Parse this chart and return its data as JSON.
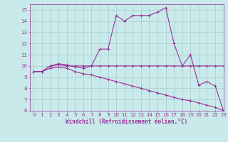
{
  "xlabel": "Windchill (Refroidissement éolien,°C)",
  "xlim": [
    -0.5,
    23
  ],
  "ylim": [
    6,
    15.5
  ],
  "xticks": [
    0,
    1,
    2,
    3,
    4,
    5,
    6,
    7,
    8,
    9,
    10,
    11,
    12,
    13,
    14,
    15,
    16,
    17,
    18,
    19,
    20,
    21,
    22,
    23
  ],
  "yticks": [
    6,
    7,
    8,
    9,
    10,
    11,
    12,
    13,
    14,
    15
  ],
  "bg_color": "#c8eaea",
  "line_color": "#993399",
  "grid_color": "#aacccc",
  "line1_x": [
    0,
    1,
    2,
    3,
    4,
    5,
    6,
    7,
    8,
    9,
    10,
    11,
    12,
    13,
    14,
    15,
    16,
    17,
    18,
    19,
    20,
    21,
    22,
    23
  ],
  "line1_y": [
    9.5,
    9.5,
    10.0,
    10.2,
    10.1,
    9.9,
    9.8,
    10.0,
    11.5,
    11.5,
    14.5,
    14.0,
    14.5,
    14.5,
    14.5,
    14.8,
    15.2,
    12.0,
    10.0,
    11.0,
    8.3,
    8.6,
    8.2,
    6.0
  ],
  "line2_x": [
    0,
    1,
    2,
    3,
    4,
    5,
    6,
    7,
    8,
    9,
    10,
    11,
    12,
    13,
    14,
    15,
    16,
    17,
    18,
    19,
    20,
    21,
    22,
    23
  ],
  "line2_y": [
    9.5,
    9.5,
    10.0,
    10.1,
    10.0,
    10.0,
    10.0,
    10.0,
    10.0,
    10.0,
    10.0,
    10.0,
    10.0,
    10.0,
    10.0,
    10.0,
    10.0,
    10.0,
    10.0,
    10.0,
    10.0,
    10.0,
    10.0,
    10.0
  ],
  "line3_x": [
    0,
    1,
    2,
    3,
    4,
    5,
    6,
    7,
    8,
    9,
    10,
    11,
    12,
    13,
    14,
    15,
    16,
    17,
    18,
    19,
    20,
    21,
    22,
    23
  ],
  "line3_y": [
    9.5,
    9.5,
    9.8,
    9.9,
    9.8,
    9.5,
    9.3,
    9.2,
    9.0,
    8.8,
    8.6,
    8.4,
    8.2,
    8.0,
    7.8,
    7.6,
    7.4,
    7.2,
    7.0,
    6.9,
    6.7,
    6.5,
    6.3,
    6.0
  ],
  "tick_fontsize": 5,
  "xlabel_fontsize": 5.5,
  "marker_size": 2.5,
  "line_width": 0.8
}
